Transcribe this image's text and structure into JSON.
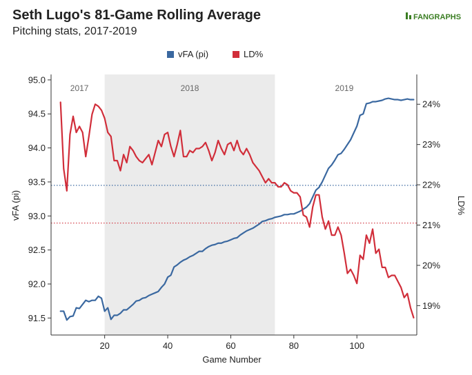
{
  "chart_data": {
    "type": "line",
    "title": "Seth Lugo's 81-Game Rolling Average",
    "subtitle": "Pitching stats, 2017-2019",
    "brand": "FANGRAPHS",
    "xlabel": "Game Number",
    "ylabel_left": "vFA (pi)",
    "ylabel_right": "LD%",
    "xlim": [
      3,
      119
    ],
    "ylim_left": [
      91.25,
      95.08
    ],
    "ylim_right": [
      18.27,
      24.74
    ],
    "x_ticks": [
      20,
      40,
      60,
      80,
      100
    ],
    "y_left_ticks": [
      91.5,
      92.0,
      92.5,
      93.0,
      93.5,
      94.0,
      94.5,
      95.0
    ],
    "y_left_tick_labels": [
      "91.5",
      "92.0",
      "92.5",
      "93.0",
      "93.5",
      "94.0",
      "94.5",
      "95.0"
    ],
    "y_right_ticks": [
      19,
      20,
      21,
      22,
      23,
      24
    ],
    "y_right_tick_labels": [
      "19%",
      "20%",
      "21%",
      "22%",
      "23%",
      "24%"
    ],
    "legend": [
      "vFA (pi)",
      "LD%"
    ],
    "legend_placement": "top-center",
    "colors": {
      "vfa": "#3a68a0",
      "ld": "#d12e3a",
      "shade": "#ebebeb"
    },
    "shaded_region": {
      "x": [
        20,
        74
      ],
      "label": "2018"
    },
    "era_labels": [
      {
        "text": "2017",
        "x": 12
      },
      {
        "text": "2018",
        "x": 47
      },
      {
        "text": "2019",
        "x": 96
      }
    ],
    "reference_lines": [
      {
        "series": "vfa",
        "axis": "left",
        "value": 93.45
      },
      {
        "series": "ld",
        "axis": "right",
        "value": 21.05
      }
    ],
    "series": [
      {
        "name": "vFA (pi)",
        "axis": "left",
        "x": [
          6,
          7,
          8,
          9,
          10,
          11,
          12,
          13,
          14,
          15,
          16,
          17,
          18,
          19,
          20,
          21,
          22,
          23,
          24,
          25,
          26,
          27,
          28,
          29,
          30,
          31,
          32,
          33,
          34,
          35,
          36,
          37,
          38,
          39,
          40,
          41,
          42,
          43,
          44,
          45,
          46,
          47,
          48,
          49,
          50,
          51,
          52,
          53,
          54,
          55,
          56,
          57,
          58,
          59,
          60,
          61,
          62,
          63,
          64,
          65,
          66,
          67,
          68,
          69,
          70,
          71,
          72,
          73,
          74,
          75,
          76,
          77,
          78,
          79,
          80,
          81,
          82,
          83,
          84,
          85,
          86,
          87,
          88,
          89,
          90,
          91,
          92,
          93,
          94,
          95,
          96,
          97,
          98,
          99,
          100,
          101,
          102,
          103,
          104,
          105,
          106,
          107,
          108,
          109,
          110,
          111,
          112,
          113,
          114,
          115,
          116,
          117,
          118
        ],
        "values": [
          91.6,
          91.6,
          91.47,
          91.52,
          91.53,
          91.65,
          91.64,
          91.7,
          91.76,
          91.74,
          91.76,
          91.76,
          91.82,
          91.79,
          91.6,
          91.65,
          91.48,
          91.54,
          91.54,
          91.57,
          91.62,
          91.62,
          91.66,
          91.7,
          91.75,
          91.76,
          91.79,
          91.8,
          91.83,
          91.85,
          91.87,
          91.89,
          91.95,
          92.0,
          92.1,
          92.13,
          92.25,
          92.28,
          92.32,
          92.35,
          92.37,
          92.4,
          92.42,
          92.45,
          92.48,
          92.48,
          92.52,
          92.55,
          92.57,
          92.58,
          92.6,
          92.6,
          92.62,
          92.63,
          92.65,
          92.67,
          92.68,
          92.72,
          92.75,
          92.78,
          92.8,
          92.82,
          92.85,
          92.88,
          92.92,
          92.93,
          92.95,
          92.96,
          92.98,
          92.99,
          93.0,
          93.02,
          93.02,
          93.03,
          93.03,
          93.05,
          93.07,
          93.1,
          93.13,
          93.18,
          93.28,
          93.38,
          93.42,
          93.5,
          93.6,
          93.7,
          93.75,
          93.82,
          93.9,
          93.92,
          93.98,
          94.05,
          94.12,
          94.22,
          94.32,
          94.48,
          94.5,
          94.65,
          94.66,
          94.68,
          94.68,
          94.69,
          94.7,
          94.72,
          94.73,
          94.72,
          94.71,
          94.71,
          94.7,
          94.71,
          94.72,
          94.71,
          94.71
        ]
      },
      {
        "name": "LD%",
        "axis": "right",
        "x": [
          6,
          7,
          8,
          9,
          10,
          11,
          12,
          13,
          14,
          15,
          16,
          17,
          18,
          19,
          20,
          21,
          22,
          23,
          24,
          25,
          26,
          27,
          28,
          29,
          30,
          31,
          32,
          33,
          34,
          35,
          36,
          37,
          38,
          39,
          40,
          41,
          42,
          43,
          44,
          45,
          46,
          47,
          48,
          49,
          50,
          51,
          52,
          53,
          54,
          55,
          56,
          57,
          58,
          59,
          60,
          61,
          62,
          63,
          64,
          65,
          66,
          67,
          68,
          69,
          70,
          71,
          72,
          73,
          74,
          75,
          76,
          77,
          78,
          79,
          80,
          81,
          82,
          83,
          84,
          85,
          86,
          87,
          88,
          89,
          90,
          91,
          92,
          93,
          94,
          95,
          96,
          97,
          98,
          99,
          100,
          101,
          102,
          103,
          104,
          105,
          106,
          107,
          108,
          109,
          110,
          111,
          112,
          113,
          114,
          115,
          116,
          117,
          118
        ],
        "values": [
          24.05,
          22.4,
          21.85,
          23.25,
          23.7,
          23.3,
          23.45,
          23.3,
          22.7,
          23.2,
          23.75,
          24.0,
          23.95,
          23.85,
          23.65,
          23.3,
          23.2,
          22.6,
          22.6,
          22.35,
          22.75,
          22.55,
          22.95,
          22.85,
          22.7,
          22.6,
          22.55,
          22.65,
          22.75,
          22.5,
          22.8,
          23.1,
          22.95,
          23.25,
          23.3,
          22.95,
          22.7,
          23.0,
          23.35,
          22.7,
          22.7,
          22.85,
          22.8,
          22.9,
          22.9,
          22.95,
          23.05,
          22.85,
          22.6,
          22.8,
          23.1,
          22.9,
          22.75,
          23.0,
          23.05,
          22.85,
          23.1,
          22.85,
          22.75,
          22.9,
          22.75,
          22.55,
          22.45,
          22.35,
          22.2,
          22.05,
          22.15,
          22.05,
          22.05,
          21.95,
          21.95,
          22.05,
          22.0,
          21.85,
          21.8,
          21.8,
          21.7,
          21.25,
          21.2,
          20.95,
          21.45,
          21.75,
          21.75,
          21.2,
          20.9,
          21.1,
          20.75,
          20.75,
          20.95,
          20.75,
          20.3,
          19.8,
          19.9,
          19.75,
          19.55,
          20.25,
          20.15,
          20.75,
          20.55,
          20.9,
          20.3,
          20.4,
          19.95,
          19.95,
          19.7,
          19.75,
          19.75,
          19.6,
          19.45,
          19.2,
          19.3,
          18.95,
          18.7
        ]
      }
    ]
  }
}
